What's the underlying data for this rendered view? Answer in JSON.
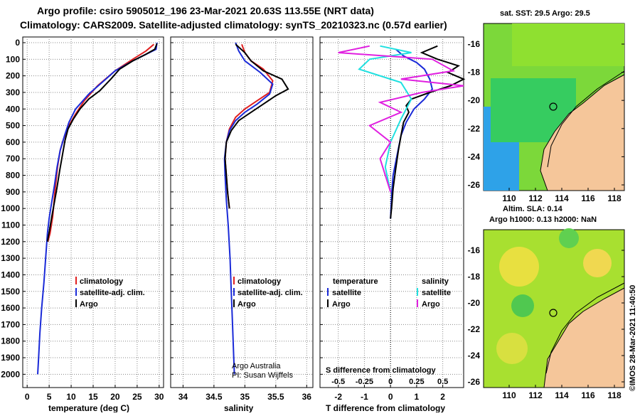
{
  "header": {
    "line1": "Argo profile: csiro 5905012_196 23-Mar-2021 20.63S 113.55E (NRT data)",
    "line2": "Climatology: CARS2009. Satellite-adjusted climatology: synTS_20210323.nc (0.57d earlier)"
  },
  "colors": {
    "climatology": "#e02020",
    "satellite": "#1a2ad8",
    "argo": "#000000",
    "sal_sat": "#20e0e0",
    "sal_argo": "#e020e0",
    "land": "#f5c69a"
  },
  "credits": {
    "line1": "Argo Australia",
    "line2": "PI: Susan Wijffels",
    "vertical": "©IMOS 28-Mar-2021 11:40:50"
  },
  "maps": {
    "sst_title": "sat. SST: 29.5 Argo: 29.5",
    "sla_title1": "Altim. SLA: 0.14",
    "sla_title2": "Argo h1000: 0.13 h2000: NaN",
    "xticks": [
      "110",
      "112",
      "114",
      "116",
      "118"
    ],
    "yticks": [
      "-16",
      "-18",
      "-20",
      "-22",
      "-24",
      "-26"
    ],
    "float_marker": "argo-float-position"
  },
  "chart_data": [
    {
      "type": "line",
      "name": "temperature",
      "xlabel": "temperature (deg C)",
      "ylabel": "pressure (dbar)",
      "xlim": [
        -1,
        31
      ],
      "ylim": [
        0,
        2080
      ],
      "xticks": [
        0,
        5,
        10,
        15,
        20,
        25,
        30
      ],
      "yticks": [
        0,
        100,
        200,
        300,
        400,
        500,
        600,
        700,
        800,
        900,
        1000,
        1100,
        1200,
        1300,
        1400,
        1500,
        1600,
        1700,
        1800,
        1900,
        2000
      ],
      "legend": [
        "climatology",
        "satellite-adj. clim.",
        "Argo"
      ],
      "series": [
        {
          "name": "climatology",
          "color": "#e02020",
          "x": [
            28.8,
            27,
            24,
            20,
            16,
            13,
            11,
            9.5,
            8.3,
            7.5,
            6.9,
            6.3,
            5.8,
            5.2,
            4.7
          ],
          "y": [
            10,
            50,
            100,
            170,
            260,
            350,
            430,
            500,
            580,
            650,
            750,
            900,
            1050,
            1150,
            1200
          ]
        },
        {
          "name": "satellite-adj. clim.",
          "color": "#1a2ad8",
          "x": [
            29.5,
            29.3,
            27,
            24,
            20,
            17,
            14,
            11,
            9.5,
            8.5,
            7.5,
            6.8,
            6.2,
            5.6,
            5.0,
            4.6,
            4.2,
            3.8,
            3.3,
            2.9,
            2.6,
            2.4
          ],
          "y": [
            0,
            40,
            70,
            110,
            170,
            240,
            310,
            400,
            480,
            560,
            650,
            750,
            860,
            960,
            1060,
            1150,
            1300,
            1450,
            1600,
            1750,
            1900,
            2000
          ]
        },
        {
          "name": "Argo",
          "color": "#000000",
          "x": [
            29.5,
            29,
            27,
            24,
            21,
            19,
            16.5,
            14,
            12,
            10.5,
            9.3,
            8.6,
            8,
            7.4,
            6.8,
            6.2,
            5.6,
            5.1,
            4.6
          ],
          "y": [
            5,
            40,
            70,
            110,
            160,
            220,
            290,
            340,
            400,
            460,
            520,
            590,
            680,
            770,
            870,
            960,
            1050,
            1130,
            1200
          ]
        }
      ]
    },
    {
      "type": "line",
      "name": "salinity",
      "xlabel": "salinity",
      "xlim": [
        33.8,
        36.1
      ],
      "ylim": [
        0,
        2080
      ],
      "xticks": [
        34,
        34.5,
        35,
        35.5,
        36
      ],
      "legend": [
        "climatology",
        "satellite-adj. clim.",
        "Argo"
      ],
      "series": [
        {
          "name": "climatology",
          "color": "#e02020",
          "x": [
            34.95,
            35.0,
            35.1,
            35.3,
            35.45,
            35.4,
            35.2,
            35.0,
            34.85,
            34.75,
            34.7,
            34.68,
            34.7,
            34.72,
            34.75
          ],
          "y": [
            10,
            60,
            110,
            160,
            230,
            300,
            350,
            400,
            450,
            520,
            600,
            700,
            800,
            900,
            1000
          ]
        },
        {
          "name": "satellite-adj. clim.",
          "color": "#1a2ad8",
          "x": [
            34.85,
            34.9,
            35.0,
            35.25,
            35.45,
            35.4,
            35.2,
            35.0,
            34.85,
            34.75,
            34.7,
            34.67,
            34.68,
            34.7,
            34.73,
            34.76,
            34.78,
            34.8,
            34.82,
            34.83
          ],
          "y": [
            0,
            50,
            110,
            180,
            250,
            310,
            370,
            420,
            470,
            530,
            600,
            700,
            800,
            950,
            1100,
            1300,
            1500,
            1700,
            1900,
            2000
          ]
        },
        {
          "name": "Argo",
          "color": "#000000",
          "x": [
            34.85,
            35.0,
            35.1,
            35.3,
            35.6,
            35.7,
            35.5,
            35.3,
            35.1,
            34.9,
            34.78,
            34.7,
            34.68,
            34.7,
            34.72,
            34.75
          ],
          "y": [
            10,
            60,
            110,
            170,
            220,
            280,
            320,
            370,
            420,
            470,
            530,
            600,
            700,
            800,
            900,
            1000
          ]
        }
      ]
    },
    {
      "type": "line",
      "name": "difference",
      "xlabel": "T difference from climatology",
      "xlabel2": "S difference from climatology",
      "xlim": [
        -2.7,
        2.8
      ],
      "ylim": [
        0,
        2080
      ],
      "xticks": [
        -2,
        -1,
        0,
        1,
        2
      ],
      "xticks2": [
        "-0.5",
        "-0.25",
        "0",
        "0.25",
        "0.5"
      ],
      "legend_left_title": "temperature",
      "legend_right_title": "salinity",
      "legend_left": [
        "satellite",
        "Argo"
      ],
      "legend_right": [
        "satellite",
        "Argo"
      ],
      "series": [
        {
          "name": "T satellite",
          "color": "#1a2ad8",
          "x": [
            0.2,
            0.5,
            1.0,
            1.3,
            1.5,
            1.6,
            1.3,
            0.9,
            0.6,
            0.4,
            0.3,
            0.2,
            0.1,
            0.05,
            0
          ],
          "y": [
            40,
            80,
            120,
            160,
            220,
            280,
            340,
            400,
            480,
            560,
            640,
            720,
            800,
            900,
            1060
          ]
        },
        {
          "name": "T Argo",
          "color": "#000000",
          "x": [
            1.8,
            1.2,
            1.8,
            2.6,
            2.2,
            2.8,
            2.3,
            1.5,
            0.8,
            0.6,
            0.7,
            0.5,
            0.4,
            0.3,
            0.2,
            0.1,
            0.05,
            0
          ],
          "y": [
            20,
            60,
            100,
            140,
            180,
            220,
            260,
            300,
            340,
            380,
            420,
            480,
            560,
            650,
            760,
            880,
            980,
            1060
          ]
        },
        {
          "name": "S satellite",
          "color": "#20e0e0",
          "x": [
            -0.1,
            0.2,
            -0.2,
            -0.3,
            0.1,
            0.2,
            0.1,
            0.0,
            -0.05,
            0.0
          ],
          "y": [
            20,
            60,
            100,
            160,
            240,
            340,
            460,
            600,
            750,
            900
          ]
        },
        {
          "name": "S Argo",
          "color": "#e020e0",
          "x": [
            -0.2,
            -0.5,
            0.4,
            0.6,
            0.1,
            0.7,
            0.3,
            -0.1,
            0.1,
            -0.2,
            0.0,
            -0.1,
            0.0
          ],
          "y": [
            20,
            60,
            100,
            170,
            220,
            260,
            300,
            360,
            420,
            500,
            600,
            700,
            900
          ]
        }
      ]
    }
  ]
}
